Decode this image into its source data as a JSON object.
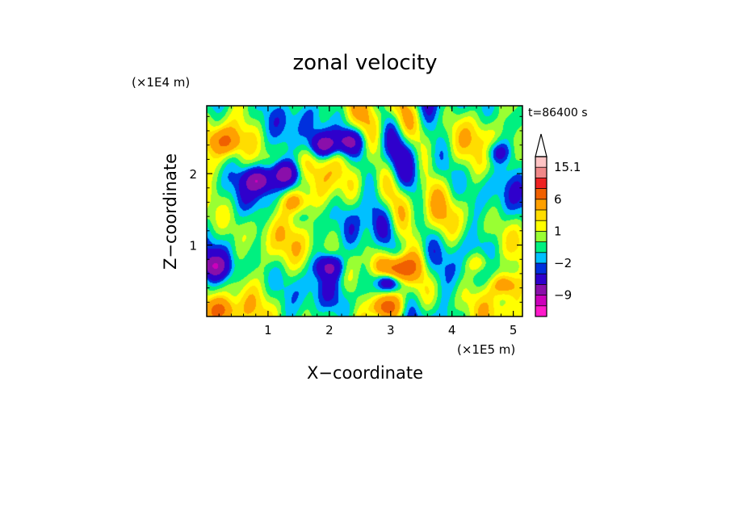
{
  "chart_data": {
    "type": "heatmap",
    "title": "zonal velocity",
    "xlabel": "X−coordinate",
    "ylabel": "Z−coordinate",
    "x_unit": "(×1E5 m)",
    "y_unit": "(×1E4 m)",
    "time_label": "t=86400 s",
    "xlim": [
      0.0,
      5.15
    ],
    "ylim": [
      0.0,
      2.95
    ],
    "x_ticks": [
      1,
      2,
      3,
      4,
      5
    ],
    "y_ticks": [
      1,
      2
    ],
    "colorbar": {
      "extend": "max",
      "levels": [
        -15,
        -12,
        -9,
        -6,
        -3,
        -2,
        -1,
        0,
        1,
        2,
        3,
        6,
        9,
        12,
        15.1
      ],
      "colors": [
        "#ff1acb",
        "#cc00bb",
        "#8a0faa",
        "#2f00cc",
        "#0030dd",
        "#00c0ff",
        "#00f080",
        "#99ff33",
        "#ffff00",
        "#ffdd00",
        "#ffa000",
        "#f06000",
        "#ee2222",
        "#f08888",
        "#ffc4c4"
      ],
      "tick_labels": [
        {
          "value": -9,
          "label": "−9"
        },
        {
          "value": -2,
          "label": "−2"
        },
        {
          "value": 1,
          "label": "1"
        },
        {
          "value": 6,
          "label": "6"
        },
        {
          "value": 15.1,
          "label": "15.1"
        }
      ]
    },
    "field_features": [
      {
        "x": 2.95,
        "z": 0.5,
        "u": -10
      },
      {
        "x": 3.05,
        "z": 0.62,
        "u": 7
      },
      {
        "x": 2.9,
        "z": 0.12,
        "u": 8
      },
      {
        "x": 1.28,
        "z": 2.0,
        "u": -7
      },
      {
        "x": 1.9,
        "z": 2.4,
        "u": -7
      },
      {
        "x": 2.3,
        "z": 2.45,
        "u": -6
      },
      {
        "x": 0.85,
        "z": 1.9,
        "u": -7
      },
      {
        "x": 0.12,
        "z": 0.7,
        "u": -6
      },
      {
        "x": 2.0,
        "z": 0.7,
        "u": -6
      },
      {
        "x": 4.75,
        "z": 2.3,
        "u": -4
      },
      {
        "x": 0.3,
        "z": 2.45,
        "u": 5
      },
      {
        "x": 1.45,
        "z": 1.6,
        "u": 5
      },
      {
        "x": 4.45,
        "z": 0.75,
        "u": 4
      },
      {
        "x": 3.25,
        "z": 0.7,
        "u": 5
      },
      {
        "x": 4.85,
        "z": 0.45,
        "u": 5
      },
      {
        "x": 0.2,
        "z": 0.08,
        "u": 6
      }
    ]
  }
}
